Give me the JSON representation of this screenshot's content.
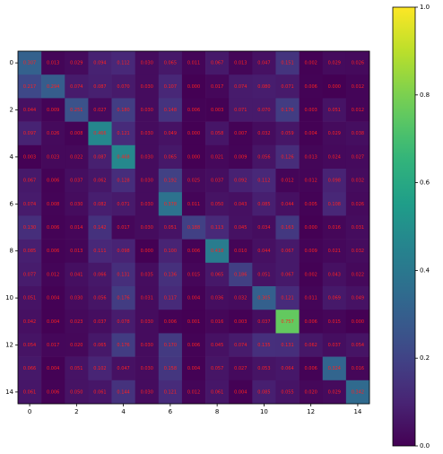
{
  "chart_data": {
    "type": "heatmap",
    "colormap": "viridis",
    "label_color": "#ff2020",
    "x": [
      0,
      1,
      2,
      3,
      4,
      5,
      6,
      7,
      8,
      9,
      10,
      11,
      12,
      13,
      14
    ],
    "y": [
      0,
      1,
      2,
      3,
      4,
      5,
      6,
      7,
      8,
      9,
      10,
      11,
      12,
      13,
      14
    ],
    "xlim": [
      -0.5,
      14.5
    ],
    "ylim": [
      14.5,
      -0.5
    ],
    "xticks": [
      0,
      2,
      4,
      6,
      8,
      10,
      12,
      14
    ],
    "yticks": [
      0,
      2,
      4,
      6,
      8,
      10,
      12,
      14
    ],
    "zlim": [
      0,
      1
    ],
    "zticks": [
      {
        "value": 0,
        "label": "0.0"
      },
      {
        "value": 0.2,
        "label": "0.2"
      },
      {
        "value": 0.4,
        "label": "0.4"
      },
      {
        "value": 0.6,
        "label": "0.6"
      },
      {
        "value": 0.8,
        "label": "0.8"
      },
      {
        "value": 1,
        "label": "1.0"
      }
    ],
    "values": [
      [
        0.307,
        0.013,
        0.029,
        0.094,
        0.112,
        0.03,
        0.065,
        0.011,
        0.067,
        0.013,
        0.047,
        0.151,
        0.002,
        0.029,
        0.026
      ],
      [
        0.217,
        0.294,
        0.074,
        0.087,
        0.07,
        0.03,
        0.107,
        0.0,
        0.017,
        0.074,
        0.08,
        0.071,
        0.006,
        0.0,
        0.012
      ],
      [
        0.044,
        0.009,
        0.251,
        0.027,
        0.18,
        0.03,
        0.148,
        0.006,
        0.003,
        0.071,
        0.07,
        0.176,
        0.003,
        0.051,
        0.012
      ],
      [
        0.097,
        0.026,
        0.008,
        0.466,
        0.121,
        0.03,
        0.049,
        0.0,
        0.058,
        0.007,
        0.032,
        0.059,
        0.004,
        0.029,
        0.038
      ],
      [
        0.003,
        0.023,
        0.022,
        0.087,
        0.468,
        0.03,
        0.065,
        0.0,
        0.021,
        0.009,
        0.056,
        0.126,
        0.013,
        0.024,
        0.027
      ],
      [
        0.067,
        0.006,
        0.037,
        0.062,
        0.128,
        0.03,
        0.192,
        0.025,
        0.037,
        0.092,
        0.112,
        0.012,
        0.012,
        0.098,
        0.032
      ],
      [
        0.074,
        0.008,
        0.03,
        0.082,
        0.071,
        0.03,
        0.378,
        0.011,
        0.05,
        0.043,
        0.085,
        0.044,
        0.005,
        0.108,
        0.026
      ],
      [
        0.13,
        0.006,
        0.014,
        0.142,
        0.017,
        0.03,
        0.051,
        0.188,
        0.113,
        0.045,
        0.034,
        0.163,
        0.0,
        0.016,
        0.031
      ],
      [
        0.085,
        0.006,
        0.013,
        0.111,
        0.098,
        0.0,
        0.1,
        0.006,
        0.418,
        0.01,
        0.044,
        0.067,
        0.009,
        0.021,
        0.032
      ],
      [
        0.077,
        0.012,
        0.041,
        0.066,
        0.131,
        0.035,
        0.136,
        0.015,
        0.065,
        0.186,
        0.051,
        0.067,
        0.002,
        0.043,
        0.022
      ],
      [
        0.051,
        0.004,
        0.03,
        0.056,
        0.176,
        0.031,
        0.117,
        0.004,
        0.036,
        0.032,
        0.305,
        0.121,
        0.011,
        0.069,
        0.049
      ],
      [
        0.042,
        0.004,
        0.023,
        0.037,
        0.078,
        0.03,
        0.006,
        0.001,
        0.016,
        0.003,
        0.037,
        0.757,
        0.006,
        0.015,
        0.0
      ],
      [
        0.054,
        0.017,
        0.02,
        0.065,
        0.176,
        0.03,
        0.17,
        0.006,
        0.045,
        0.074,
        0.135,
        0.131,
        0.062,
        0.037,
        0.054
      ],
      [
        0.066,
        0.004,
        0.051,
        0.102,
        0.047,
        0.03,
        0.158,
        0.004,
        0.057,
        0.027,
        0.053,
        0.064,
        0.006,
        0.324,
        0.016
      ],
      [
        0.061,
        0.006,
        0.05,
        0.061,
        0.144,
        0.03,
        0.121,
        0.012,
        0.061,
        0.004,
        0.085,
        0.055,
        0.02,
        0.029,
        0.342
      ]
    ],
    "value_labels": [
      [
        "0.307",
        "0.013",
        "0.029",
        "0.094",
        "0.112",
        "0.030",
        "0.065",
        "0.011",
        "0.067",
        "0.013",
        "0.047",
        "0.151",
        "0.002",
        "0.029",
        "0.026"
      ],
      [
        "0.217",
        "0.294",
        "0.074",
        "0.087",
        "0.070",
        "0.030",
        "0.107",
        "0.000",
        "0.017",
        "0.074",
        "0.080",
        "0.071",
        "0.006",
        "0.000",
        "0.012"
      ],
      [
        "0.044",
        "0.009",
        "0.251",
        "0.027",
        "0.180",
        "0.030",
        "0.148",
        "0.006",
        "0.003",
        "0.071",
        "0.070",
        "0.176",
        "0.003",
        "0.051",
        "0.012"
      ],
      [
        "0.097",
        "0.026",
        "0.008",
        "0.466",
        "0.121",
        "0.030",
        "0.049",
        "0.000",
        "0.058",
        "0.007",
        "0.032",
        "0.059",
        "0.004",
        "0.029",
        "0.038"
      ],
      [
        "0.003",
        "0.023",
        "0.022",
        "0.087",
        "0.468",
        "0.030",
        "0.065",
        "0.000",
        "0.021",
        "0.009",
        "0.056",
        "0.126",
        "0.013",
        "0.024",
        "0.027"
      ],
      [
        "0.067",
        "0.006",
        "0.037",
        "0.062",
        "0.128",
        "0.030",
        "0.192",
        "0.025",
        "0.037",
        "0.092",
        "0.112",
        "0.012",
        "0.012",
        "0.098",
        "0.032"
      ],
      [
        "0.074",
        "0.008",
        "0.030",
        "0.082",
        "0.071",
        "0.030",
        "0.378",
        "0.011",
        "0.050",
        "0.043",
        "0.085",
        "0.044",
        "0.005",
        "0.108",
        "0.026"
      ],
      [
        "0.130",
        "0.006",
        "0.014",
        "0.142",
        "0.017",
        "0.030",
        "0.051",
        "0.188",
        "0.113",
        "0.045",
        "0.034",
        "0.163",
        "0.000",
        "0.016",
        "0.031"
      ],
      [
        "0.085",
        "0.006",
        "0.013",
        "0.111",
        "0.098",
        "0.000",
        "0.100",
        "0.006",
        "0.418",
        "0.010",
        "0.044",
        "0.067",
        "0.009",
        "0.021",
        "0.032"
      ],
      [
        "0.077",
        "0.012",
        "0.041",
        "0.066",
        "0.131",
        "0.035",
        "0.136",
        "0.015",
        "0.065",
        "0.186",
        "0.051",
        "0.067",
        "0.002",
        "0.043",
        "0.022"
      ],
      [
        "0.051",
        "0.004",
        "0.030",
        "0.056",
        "0.176",
        "0.031",
        "0.117",
        "0.004",
        "0.036",
        "0.032",
        "0.305",
        "0.121",
        "0.011",
        "0.069",
        "0.049"
      ],
      [
        "0.042",
        "0.004",
        "0.023",
        "0.037",
        "0.078",
        "0.030",
        "0.006",
        "0.001",
        "0.016",
        "0.003",
        "0.037",
        "0.757",
        "0.006",
        "0.015",
        "0.000"
      ],
      [
        "0.054",
        "0.017",
        "0.020",
        "0.065",
        "0.176",
        "0.030",
        "0.170",
        "0.006",
        "0.045",
        "0.074",
        "0.135",
        "0.131",
        "0.062",
        "0.037",
        "0.054"
      ],
      [
        "0.066",
        "0.004",
        "0.051",
        "0.102",
        "0.047",
        "0.030",
        "0.158",
        "0.004",
        "0.057",
        "0.027",
        "0.053",
        "0.064",
        "0.006",
        "0.324",
        "0.016"
      ],
      [
        "0.061",
        "0.006",
        "0.050",
        "0.061",
        "0.144",
        "0.030",
        "0.121",
        "0.012",
        "0.061",
        "0.004",
        "0.085",
        "0.055",
        "0.020",
        "0.029",
        "0.342"
      ]
    ]
  }
}
